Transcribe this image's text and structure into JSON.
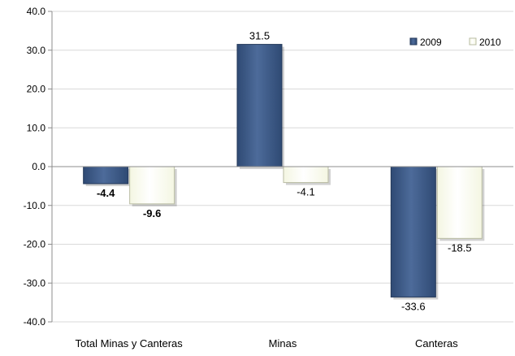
{
  "chart_data": {
    "type": "bar",
    "categories": [
      "Total Minas y Canteras",
      "Minas",
      "Canteras"
    ],
    "series": [
      {
        "name": "2009",
        "values": [
          -4.4,
          31.5,
          -33.6
        ],
        "labels": [
          "-4.4",
          "31.5",
          "-33.6"
        ],
        "bold": [
          true,
          false,
          false
        ],
        "color": "#2f4a74",
        "color_light": "#4d6b9a"
      },
      {
        "name": "2010",
        "values": [
          -9.6,
          -4.1,
          -18.5
        ],
        "labels": [
          "-9.6",
          "-4.1",
          "-18.5"
        ],
        "bold": [
          true,
          false,
          false
        ],
        "color": "#f4f6e2",
        "color_light": "#ffffff"
      }
    ],
    "ylim": [
      -40,
      40
    ],
    "yticks": [
      40,
      30,
      20,
      10,
      0,
      -10,
      -20,
      -30,
      -40
    ],
    "ytick_labels": [
      "40.0",
      "30.0",
      "20.0",
      "10.0",
      "0.0",
      "-10.0",
      "-20.0",
      "-30.0",
      "-40.0"
    ],
    "grid": true,
    "legend_position": "top-right",
    "title": "",
    "xlabel": "",
    "ylabel": ""
  }
}
